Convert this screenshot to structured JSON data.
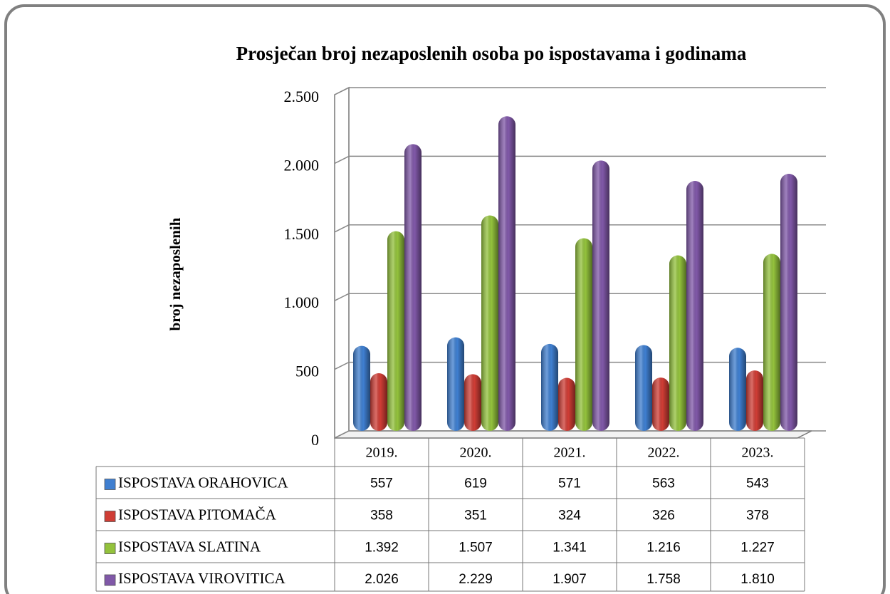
{
  "chart_data": {
    "type": "bar",
    "title": "Prosječan broj nezaposlenih osoba po ispostavama i godinama",
    "ylabel": "broj nezaposlenih",
    "categories": [
      "2019.",
      "2020.",
      "2021.",
      "2022.",
      "2023."
    ],
    "series": [
      {
        "name": "ISPOSTAVA ORAHOVICA",
        "color": "#3f7fd0",
        "values": [
          557,
          619,
          571,
          563,
          543
        ],
        "value_labels": [
          "557",
          "619",
          "571",
          "563",
          "543"
        ]
      },
      {
        "name": "ISPOSTAVA PITOMAČA",
        "color": "#cf3d35",
        "values": [
          358,
          351,
          324,
          326,
          378
        ],
        "value_labels": [
          "358",
          "351",
          "324",
          "326",
          "378"
        ]
      },
      {
        "name": "ISPOSTAVA SLATINA",
        "color": "#93c23c",
        "values": [
          1392,
          1507,
          1341,
          1216,
          1227
        ],
        "value_labels": [
          "1.392",
          "1.507",
          "1.341",
          "1.216",
          "1.227"
        ]
      },
      {
        "name": "ISPOSTAVA VIROVITICA",
        "color": "#8058a8",
        "values": [
          2026,
          2229,
          1907,
          1758,
          1810
        ],
        "value_labels": [
          "2.026",
          "2.229",
          "1.907",
          "1.758",
          "1.810"
        ]
      }
    ],
    "ylim": [
      0,
      2500
    ],
    "yticks": [
      0,
      500,
      {
        "value": 1000,
        "label": "1.000"
      },
      {
        "value": 1500,
        "label": "1.500"
      },
      {
        "value": 2000,
        "label": "2.000"
      },
      {
        "value": 2500,
        "label": "2.500"
      }
    ],
    "grid": true
  }
}
